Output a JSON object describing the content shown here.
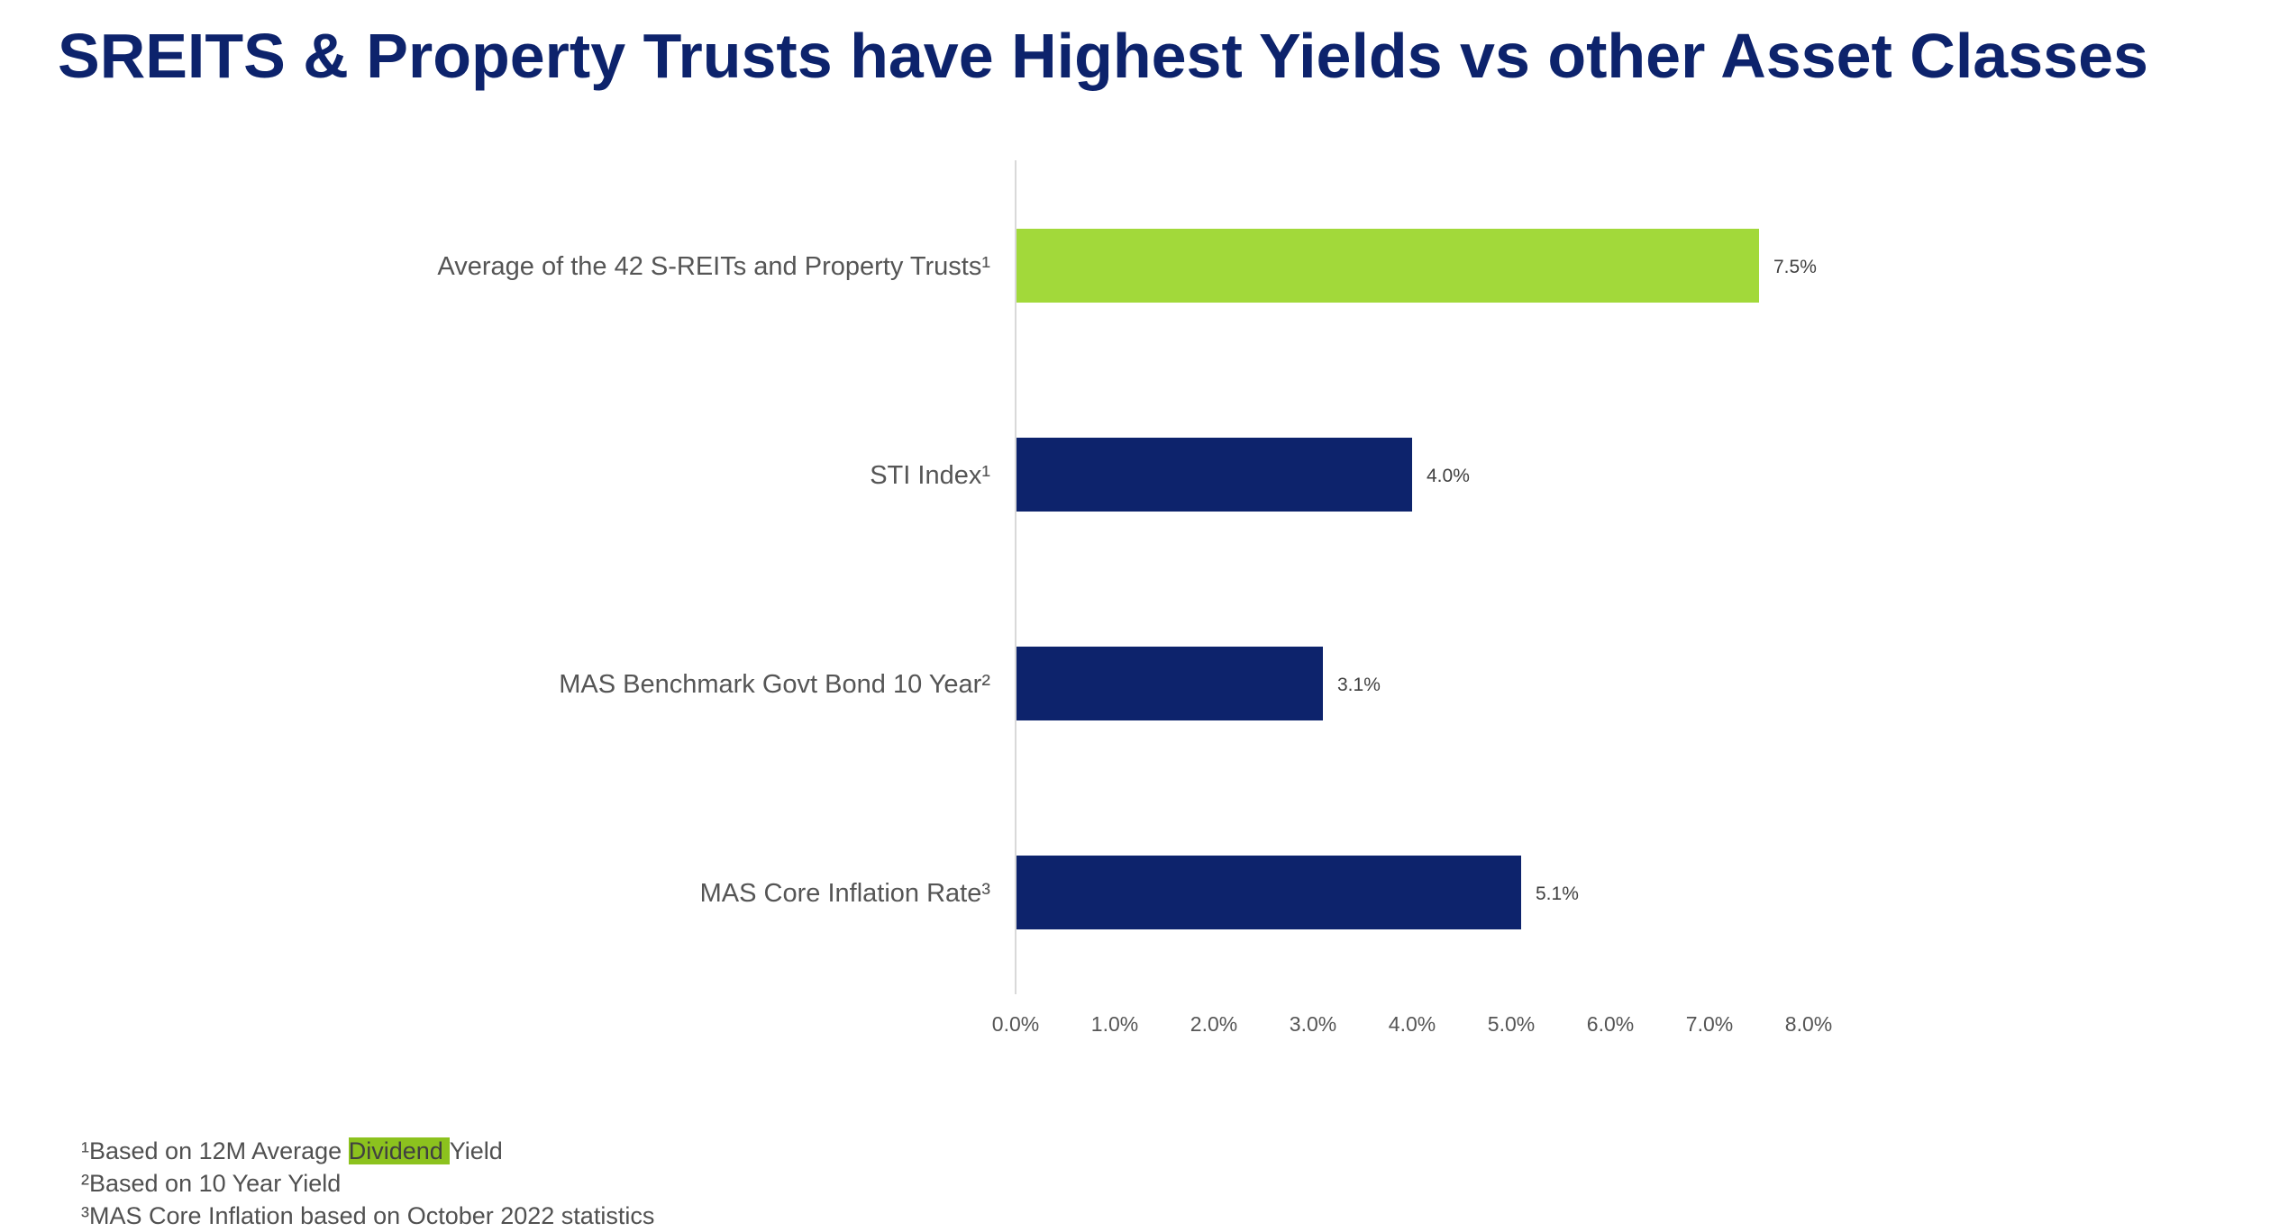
{
  "title": "SREITS & Property Trusts have Highest Yields vs other Asset Classes",
  "colors": {
    "title": "#0d236c",
    "highlight_bar": "#a2d93a",
    "bar": "#0d236c",
    "axis_line": "#d9d9d9",
    "footnote_highlight": "#8cc21e"
  },
  "chart_data": {
    "type": "bar",
    "orientation": "horizontal",
    "title": "SREITS & Property Trusts have Highest Yields vs other Asset Classes",
    "xlabel": "",
    "ylabel": "",
    "xlim": [
      0,
      8
    ],
    "grid": false,
    "legend": "none",
    "categories": [
      "Average of the 42 S-REITs and Property Trusts¹",
      "STI Index¹",
      "MAS Benchmark Govt Bond 10 Year²",
      "MAS Core Inflation Rate³"
    ],
    "values": [
      7.5,
      4.0,
      3.1,
      5.1
    ],
    "value_labels": [
      "7.5%",
      "4.0%",
      "3.1%",
      "5.1%"
    ],
    "bar_colors": [
      "#a2d93a",
      "#0d236c",
      "#0d236c",
      "#0d236c"
    ],
    "x_ticks": [
      0,
      1,
      2,
      3,
      4,
      5,
      6,
      7,
      8
    ],
    "x_tick_labels": [
      "0.0%",
      "1.0%",
      "2.0%",
      "3.0%",
      "4.0%",
      "5.0%",
      "6.0%",
      "7.0%",
      "8.0%"
    ]
  },
  "footnotes": {
    "f1_prefix": "¹Based on 12M Average ",
    "f1_highlight": "Dividend ",
    "f1_suffix": "Yield",
    "f2": "²Based on 10 Year Yield",
    "f3": "³MAS Core Inflation based on October 2022 statistics"
  }
}
